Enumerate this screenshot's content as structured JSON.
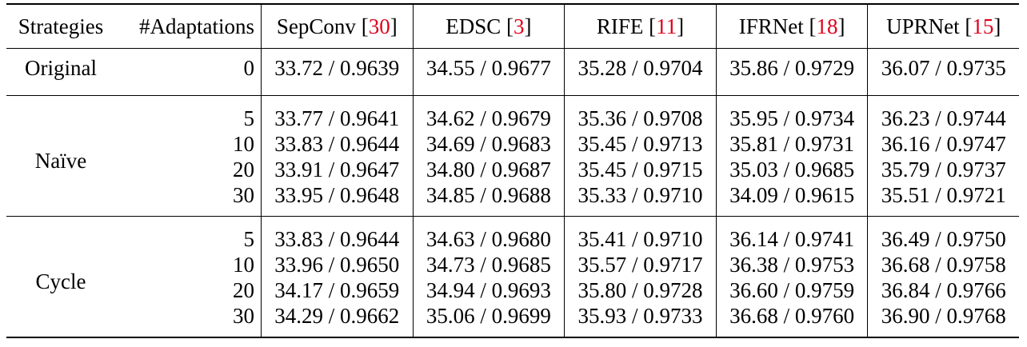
{
  "header": {
    "strategies": "Strategies",
    "adaptations": "#Adaptations",
    "methods": [
      {
        "name": "SepConv",
        "cite": "30"
      },
      {
        "name": "EDSC",
        "cite": "3"
      },
      {
        "name": "RIFE",
        "cite": "11"
      },
      {
        "name": "IFRNet",
        "cite": "18"
      },
      {
        "name": "UPRNet",
        "cite": "15"
      }
    ]
  },
  "groups": [
    {
      "strategy": "Original",
      "rows": [
        {
          "n": "0",
          "values": [
            "33.72 / 0.9639",
            "34.55 / 0.9677",
            "35.28 / 0.9704",
            "35.86 / 0.9729",
            "36.07 / 0.9735"
          ]
        }
      ]
    },
    {
      "strategy": "Naïve",
      "rows": [
        {
          "n": "5",
          "values": [
            "33.77 / 0.9641",
            "34.62 / 0.9679",
            "35.36 / 0.9708",
            "35.95 / 0.9734",
            "36.23 / 0.9744"
          ]
        },
        {
          "n": "10",
          "values": [
            "33.83 / 0.9644",
            "34.69 / 0.9683",
            "35.45 / 0.9713",
            "35.81 / 0.9731",
            "36.16 / 0.9747"
          ]
        },
        {
          "n": "20",
          "values": [
            "33.91 / 0.9647",
            "34.80 / 0.9687",
            "35.45 / 0.9715",
            "35.03 / 0.9685",
            "35.79 / 0.9737"
          ]
        },
        {
          "n": "30",
          "values": [
            "33.95 / 0.9648",
            "34.85 / 0.9688",
            "35.33 / 0.9710",
            "34.09 / 0.9615",
            "35.51 / 0.9721"
          ]
        }
      ]
    },
    {
      "strategy": "Cycle",
      "rows": [
        {
          "n": "5",
          "values": [
            "33.83 / 0.9644",
            "34.63 / 0.9680",
            "35.41 / 0.9710",
            "36.14 / 0.9741",
            "36.49 / 0.9750"
          ]
        },
        {
          "n": "10",
          "values": [
            "33.96 / 0.9650",
            "34.73 / 0.9685",
            "35.57 / 0.9717",
            "36.38 / 0.9753",
            "36.68 / 0.9758"
          ]
        },
        {
          "n": "20",
          "values": [
            "34.17 / 0.9659",
            "34.94 / 0.9693",
            "35.80 / 0.9728",
            "36.60 / 0.9759",
            "36.84 / 0.9766"
          ]
        },
        {
          "n": "30",
          "values": [
            "34.29 / 0.9662",
            "35.06 / 0.9699",
            "35.93 / 0.9733",
            "36.68 / 0.9760",
            "36.90 / 0.9768"
          ]
        }
      ]
    }
  ],
  "colors": {
    "citation": "#e0001b",
    "text": "#000000"
  }
}
